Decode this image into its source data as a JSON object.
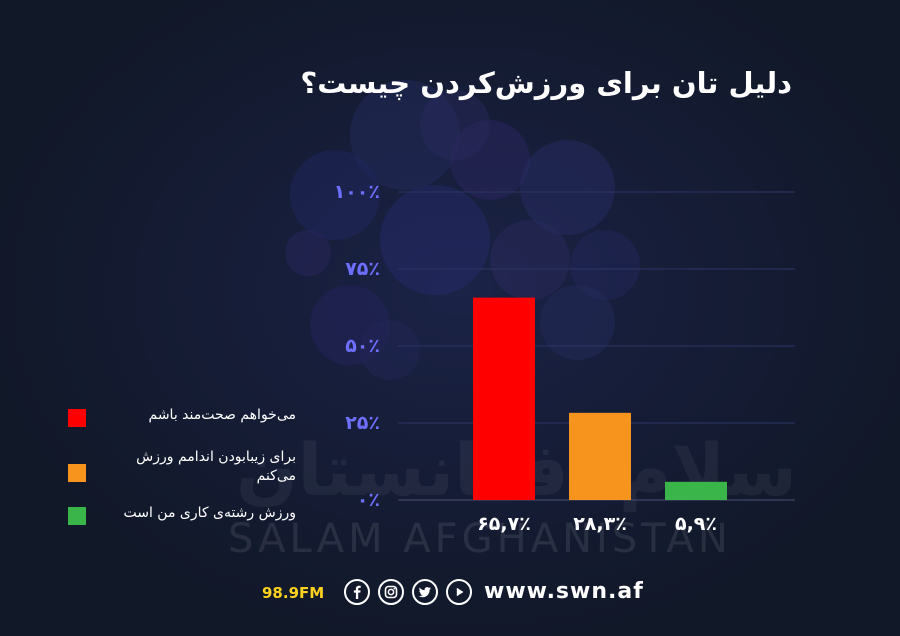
{
  "title": "دلیل تان برای ورزش‌کردن چیست؟",
  "watermark": {
    "arabic": "سلام افغانستان",
    "english": "SALAM AFGHANISTAN"
  },
  "chart_data": {
    "type": "bar",
    "categories": [
      "می‌خواهم صحت‌مند باشم",
      "برای زیبابودن اندامم ورزش می‌کنم",
      "ورزش رشته‌ی کاری من است"
    ],
    "values": [
      65.7,
      28.3,
      5.9
    ],
    "value_labels": [
      "۶۵,۷٪",
      "۲۸,۳٪",
      "۵,۹٪"
    ],
    "colors": [
      "#ff0000",
      "#f7941d",
      "#39b54a"
    ],
    "ylim": [
      0,
      100
    ],
    "y_ticks": [
      0,
      25,
      50,
      75,
      100
    ],
    "y_tick_labels": [
      "۰٪",
      "۲۵٪",
      "۵۰٪",
      "۷۵٪",
      "۱۰۰٪"
    ],
    "grid": true,
    "legend_position": "left",
    "xlabel": "",
    "ylabel": ""
  },
  "legend": {
    "items": [
      {
        "label": "می‌خواهم صحت‌مند باشم",
        "color": "#ff0000"
      },
      {
        "label": "برای زیبابودن اندامم ورزش می‌کنم",
        "color": "#f7941d"
      },
      {
        "label": "ورزش رشته‌ی کاری من است",
        "color": "#39b54a"
      }
    ]
  },
  "footer": {
    "frequency": "98.9FM",
    "social_icons": [
      "facebook-icon",
      "instagram-icon",
      "twitter-icon",
      "youtube-icon"
    ],
    "website": "www.swn.af"
  },
  "colors": {
    "background": "#131a2c",
    "axis_label": "#6f6fff",
    "frequency": "#ffd21f"
  }
}
